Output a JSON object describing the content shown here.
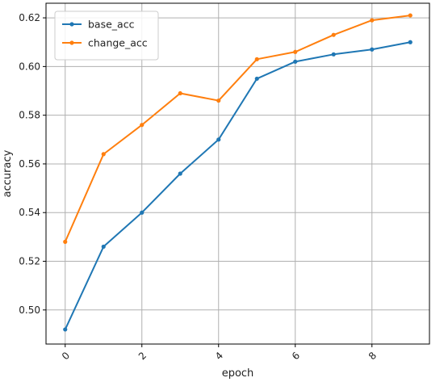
{
  "chart_data": {
    "type": "line",
    "xlabel": "epoch",
    "ylabel": "accuracy",
    "x": [
      0,
      1,
      2,
      3,
      4,
      5,
      6,
      7,
      8,
      9
    ],
    "xticks": [
      "0",
      "2",
      "4",
      "6",
      "8"
    ],
    "yticks": [
      "0.50",
      "0.52",
      "0.54",
      "0.56",
      "0.58",
      "0.60",
      "0.62"
    ],
    "xlim": [
      -0.5,
      9.5
    ],
    "ylim": [
      0.486,
      0.626
    ],
    "grid": true,
    "legend": "upper left",
    "series": [
      {
        "name": "base_acc",
        "color": "#1f77b4",
        "values": [
          0.492,
          0.526,
          0.54,
          0.556,
          0.57,
          0.595,
          0.602,
          0.605,
          0.607,
          0.61
        ]
      },
      {
        "name": "change_acc",
        "color": "#ff7f0e",
        "values": [
          0.528,
          0.564,
          0.576,
          0.589,
          0.586,
          0.603,
          0.606,
          0.613,
          0.619,
          0.621
        ]
      }
    ]
  }
}
